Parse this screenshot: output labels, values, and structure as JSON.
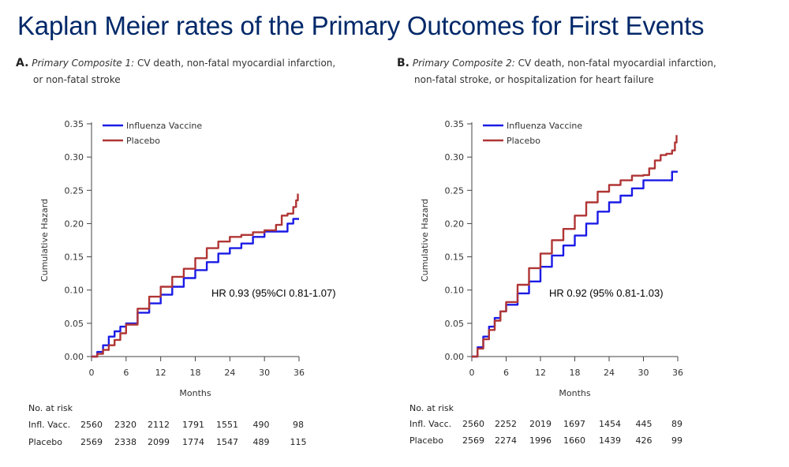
{
  "title": "Kaplan Meier rates of the Primary Outcomes for First Events",
  "colors": {
    "title": "#002868",
    "influenza": "#1a1ae6",
    "placebo": "#b03535"
  },
  "panels": [
    {
      "letter": "A.",
      "caption_italic": "Primary Composite 1:",
      "caption_rest": " CV death, non-fatal myocardial infarction,",
      "caption_line2": "or non-fatal stroke"
    },
    {
      "letter": "B.",
      "caption_italic": "Primary Composite 2:",
      "caption_rest": " CV death, non-fatal myocardial infarction,",
      "caption_line2": "non-fatal stroke, or hospitalization for heart failure"
    }
  ],
  "chart_data": [
    {
      "type": "line",
      "title": "",
      "xlabel": "Months",
      "ylabel": "Cumulative Hazard",
      "xlim": [
        0,
        36
      ],
      "ylim": [
        0,
        0.35
      ],
      "x_ticks": [
        "0",
        "6",
        "12",
        "18",
        "24",
        "30",
        "36"
      ],
      "y_ticks": [
        "0.00",
        "0.05",
        "0.10",
        "0.15",
        "0.20",
        "0.25",
        "0.30",
        "0.35"
      ],
      "legend_position": "top-left",
      "annotation": "HR 0.93 (95%CI 0.81-1.07)",
      "series": [
        {
          "name": "Influenza Vaccine",
          "color": "#1a1ae6",
          "x": [
            0,
            1,
            2,
            3,
            4,
            5,
            6,
            8,
            10,
            12,
            14,
            16,
            18,
            20,
            22,
            24,
            26,
            28,
            30,
            32,
            34,
            35,
            36
          ],
          "y": [
            0,
            0.007,
            0.017,
            0.03,
            0.038,
            0.045,
            0.05,
            0.066,
            0.08,
            0.093,
            0.105,
            0.118,
            0.13,
            0.142,
            0.155,
            0.163,
            0.17,
            0.18,
            0.188,
            0.188,
            0.2,
            0.207,
            0.207
          ]
        },
        {
          "name": "Placebo",
          "color": "#b03535",
          "x": [
            0,
            1,
            2,
            3,
            4,
            5,
            6,
            8,
            10,
            12,
            14,
            16,
            18,
            20,
            22,
            24,
            26,
            28,
            30,
            32,
            33,
            34,
            35,
            35.5,
            35.8
          ],
          "y": [
            0,
            0.004,
            0.01,
            0.017,
            0.025,
            0.035,
            0.048,
            0.072,
            0.09,
            0.105,
            0.12,
            0.132,
            0.148,
            0.163,
            0.173,
            0.18,
            0.183,
            0.187,
            0.19,
            0.198,
            0.212,
            0.215,
            0.225,
            0.235,
            0.245
          ]
        }
      ],
      "at_risk": {
        "header": "No. at risk",
        "rows": [
          {
            "label": "Infl. Vacc.",
            "values": [
              "2560",
              "2320",
              "2112",
              "1791",
              "1551",
              "490",
              "98"
            ]
          },
          {
            "label": "Placebo",
            "values": [
              "2569",
              "2338",
              "2099",
              "1774",
              "1547",
              "489",
              "115"
            ]
          }
        ]
      }
    },
    {
      "type": "line",
      "title": "",
      "xlabel": "Months",
      "ylabel": "Cumulative Hazard",
      "xlim": [
        0,
        36
      ],
      "ylim": [
        0,
        0.35
      ],
      "x_ticks": [
        "0",
        "6",
        "12",
        "18",
        "24",
        "30",
        "36"
      ],
      "y_ticks": [
        "0.00",
        "0.05",
        "0.10",
        "0.15",
        "0.20",
        "0.25",
        "0.30",
        "0.35"
      ],
      "legend_position": "top-left",
      "annotation": "HR 0.92 (95% 0.81-1.03)",
      "series": [
        {
          "name": "Influenza Vaccine",
          "color": "#1a1ae6",
          "x": [
            0,
            1,
            2,
            3,
            4,
            5,
            6,
            8,
            10,
            12,
            14,
            16,
            18,
            20,
            22,
            24,
            26,
            28,
            30,
            32,
            34,
            35,
            36
          ],
          "y": [
            0,
            0.014,
            0.03,
            0.045,
            0.058,
            0.068,
            0.078,
            0.095,
            0.113,
            0.135,
            0.152,
            0.167,
            0.182,
            0.2,
            0.218,
            0.232,
            0.242,
            0.253,
            0.265,
            0.265,
            0.265,
            0.278,
            0.278
          ]
        },
        {
          "name": "Placebo",
          "color": "#b03535",
          "x": [
            0,
            1,
            2,
            3,
            4,
            5,
            6,
            8,
            10,
            12,
            14,
            16,
            18,
            20,
            22,
            24,
            26,
            28,
            30,
            31,
            32,
            33,
            34,
            35,
            35.5,
            35.8
          ],
          "y": [
            0,
            0.012,
            0.026,
            0.04,
            0.054,
            0.068,
            0.082,
            0.108,
            0.133,
            0.155,
            0.175,
            0.192,
            0.212,
            0.232,
            0.248,
            0.258,
            0.265,
            0.272,
            0.273,
            0.283,
            0.295,
            0.303,
            0.305,
            0.31,
            0.322,
            0.333
          ]
        }
      ],
      "at_risk": {
        "header": "No. at risk",
        "rows": [
          {
            "label": "Infl. Vacc.",
            "values": [
              "2560",
              "2252",
              "2019",
              "1697",
              "1454",
              "445",
              "89"
            ]
          },
          {
            "label": "Placebo",
            "values": [
              "2569",
              "2274",
              "1996",
              "1660",
              "1439",
              "426",
              "99"
            ]
          }
        ]
      }
    }
  ]
}
